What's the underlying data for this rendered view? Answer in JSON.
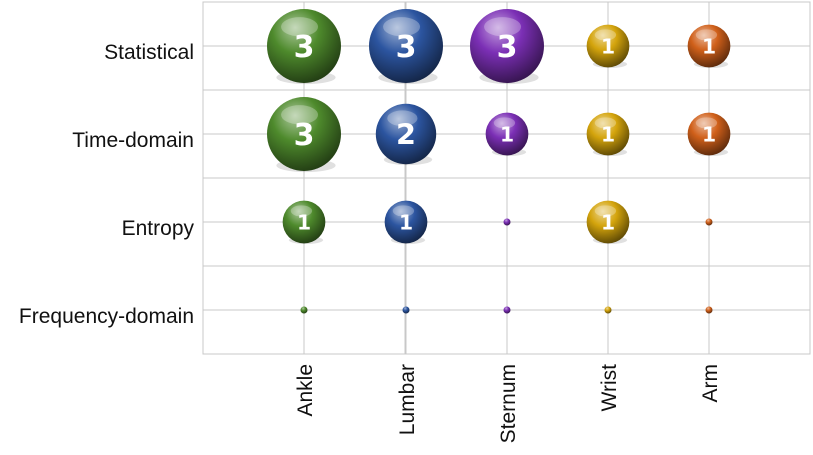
{
  "chart_data": {
    "type": "scatter",
    "subtype": "bubble",
    "categories_x": [
      "Ankle",
      "Lumbar",
      "Sternum",
      "Wrist",
      "Arm"
    ],
    "categories_y": [
      "Statistical",
      "Time-domain",
      "Entropy",
      "Frequency-domain"
    ],
    "series": [
      {
        "x": "Ankle",
        "values": [
          3,
          3,
          1,
          0
        ],
        "color": "#4e8a2c"
      },
      {
        "x": "Lumbar",
        "values": [
          3,
          2,
          1,
          0
        ],
        "color": "#2c55a0"
      },
      {
        "x": "Sternum",
        "values": [
          3,
          1,
          0,
          0
        ],
        "color": "#7b2fb5"
      },
      {
        "x": "Wrist",
        "values": [
          1,
          1,
          1,
          0
        ],
        "color": "#d4a40c"
      },
      {
        "x": "Arm",
        "values": [
          1,
          1,
          0,
          0
        ],
        "color": "#d0601a"
      }
    ],
    "data_labels_shown_for_nonzero": true,
    "grid": true,
    "legend": "none"
  }
}
